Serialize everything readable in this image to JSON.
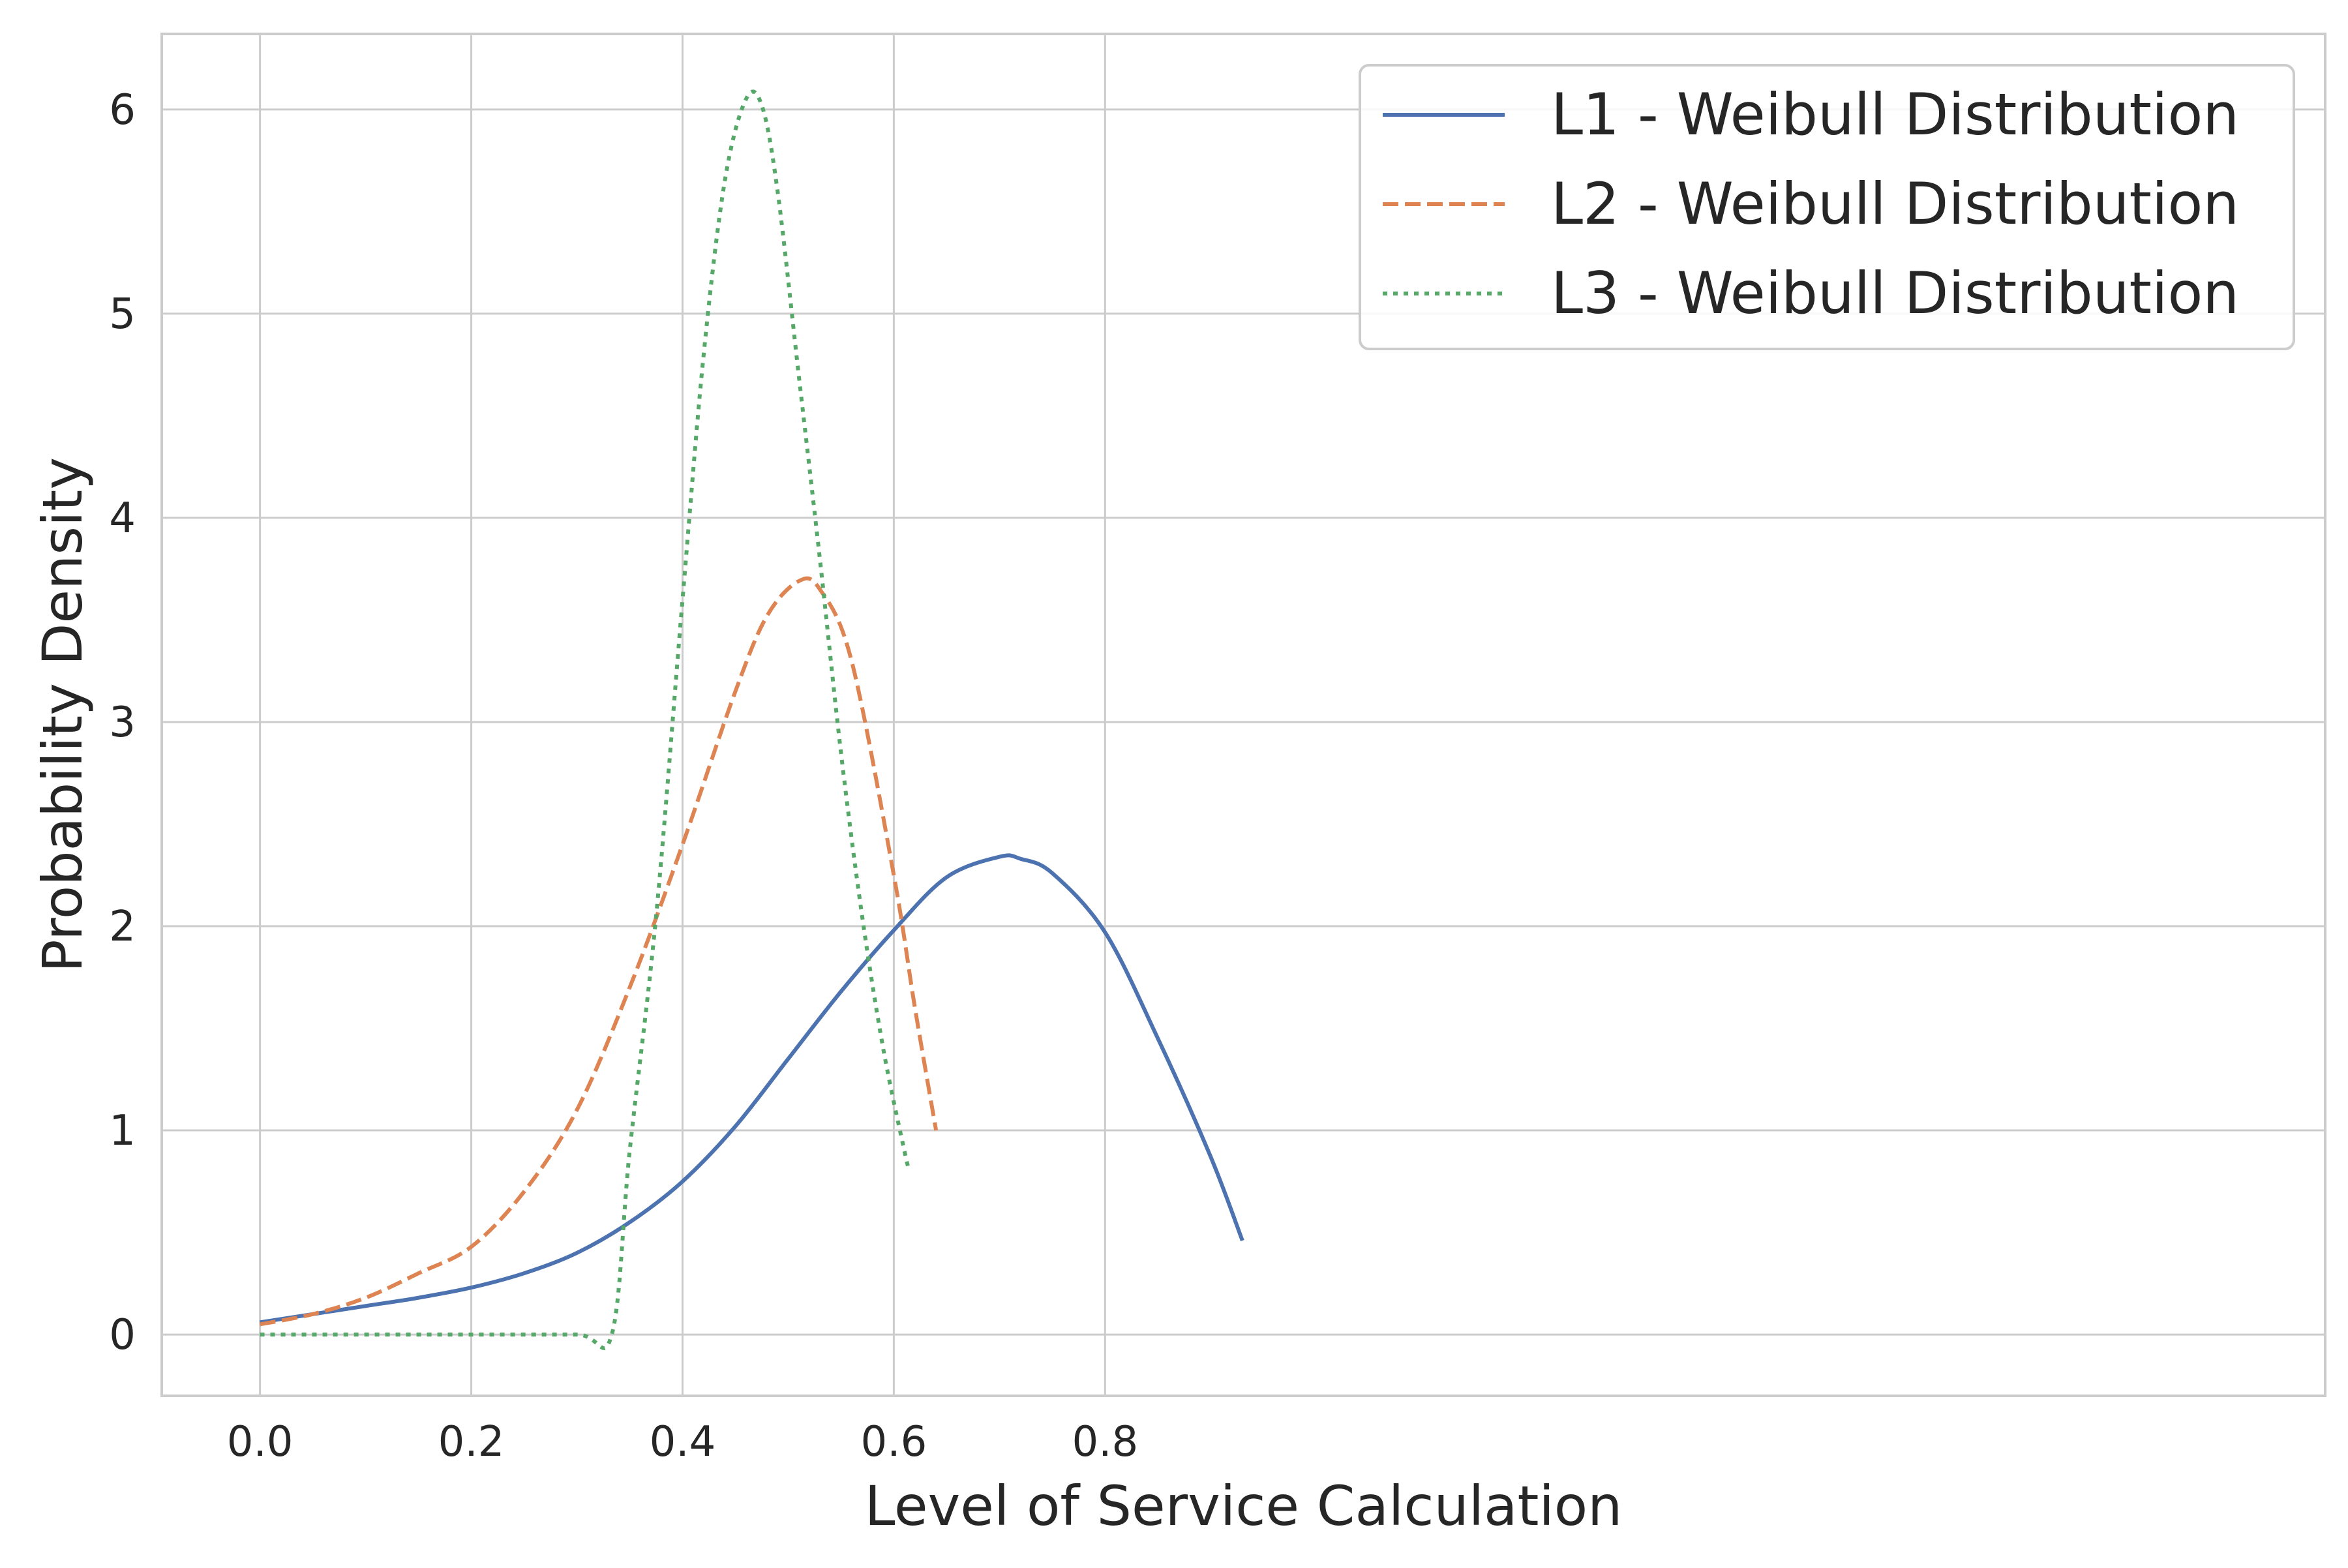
{
  "chart_data": {
    "type": "line",
    "title": "",
    "xlabel": "Level of Service Calculation",
    "ylabel": "Probability Density",
    "xlim": [
      -0.093,
      1.955
    ],
    "ylim": [
      -0.3,
      6.37
    ],
    "x_ticks": [
      0.0,
      0.2,
      0.4,
      0.6,
      0.8
    ],
    "x_tick_labels": [
      "0.0",
      "0.2",
      "0.4",
      "0.6",
      "0.8"
    ],
    "y_ticks": [
      0,
      1,
      2,
      3,
      4,
      5,
      6
    ],
    "y_tick_labels": [
      "0",
      "1",
      "2",
      "3",
      "4",
      "5",
      "6"
    ],
    "grid": true,
    "legend_position": "top-right",
    "series": [
      {
        "name": "L1 - Weibull Distribution",
        "color": "#4c72b0",
        "dash": "solid",
        "x": [
          0.0,
          0.05,
          0.1,
          0.15,
          0.2,
          0.25,
          0.3,
          0.35,
          0.4,
          0.45,
          0.5,
          0.55,
          0.6,
          0.65,
          0.7,
          0.72,
          0.75,
          0.8,
          0.85,
          0.9,
          0.93
        ],
        "y": [
          0.06,
          0.1,
          0.14,
          0.18,
          0.23,
          0.3,
          0.4,
          0.55,
          0.75,
          1.02,
          1.35,
          1.68,
          1.98,
          2.24,
          2.34,
          2.33,
          2.26,
          1.97,
          1.45,
          0.87,
          0.46
        ]
      },
      {
        "name": "L2 - Weibull Distribution",
        "color": "#dd8452",
        "dash": "dashed",
        "x": [
          0.0,
          0.05,
          0.1,
          0.15,
          0.2,
          0.25,
          0.3,
          0.35,
          0.4,
          0.45,
          0.48,
          0.51,
          0.53,
          0.56,
          0.6,
          0.62,
          0.64
        ],
        "y": [
          0.05,
          0.1,
          0.18,
          0.3,
          0.43,
          0.7,
          1.1,
          1.7,
          2.4,
          3.15,
          3.52,
          3.69,
          3.65,
          3.3,
          2.25,
          1.6,
          1.0
        ]
      },
      {
        "name": "L3 - Weibull Distribution",
        "color": "#55a868",
        "dash": "dotted",
        "x": [
          0.0,
          0.1,
          0.2,
          0.3,
          0.333,
          0.35,
          0.375,
          0.4,
          0.42,
          0.44,
          0.46,
          0.475,
          0.49,
          0.51,
          0.53,
          0.55,
          0.57,
          0.59,
          0.61,
          0.615
        ],
        "y": [
          0.0,
          0.0,
          0.0,
          0.0,
          0.0,
          0.9,
          2.05,
          3.6,
          4.8,
          5.65,
          6.05,
          6.02,
          5.6,
          4.7,
          3.8,
          2.85,
          2.05,
          1.4,
          0.9,
          0.8
        ]
      }
    ]
  }
}
